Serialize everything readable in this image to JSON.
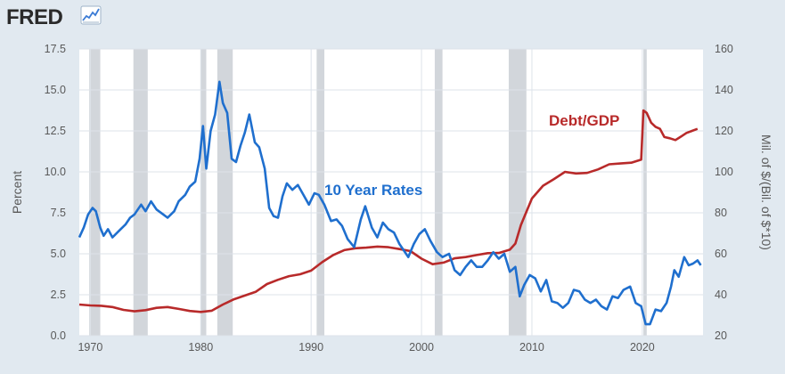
{
  "logo": {
    "text": "FRED",
    "icon": "chart-line-icon"
  },
  "colors": {
    "page_bg": "#e1e9f0",
    "plot_bg": "#ffffff",
    "grid": "#dde3ea",
    "recession": "#d2d6db",
    "rates": "#1f6fce",
    "debt": "#b82a2a",
    "text": "#595959"
  },
  "chart_data": {
    "type": "line",
    "y_left": {
      "label": "Percent",
      "range": [
        0,
        17.5
      ],
      "ticks": [
        "0.0",
        "2.5",
        "5.0",
        "7.5",
        "10.0",
        "12.5",
        "15.0",
        "17.5"
      ]
    },
    "y_right": {
      "label": "Mil. of $/(Bil. of $*10)",
      "range": [
        20,
        160
      ],
      "ticks": [
        "20",
        "40",
        "60",
        "80",
        "100",
        "120",
        "140",
        "160"
      ]
    },
    "x_axis": {
      "range": [
        1969,
        2025.5
      ],
      "ticks": [
        "1970",
        "1980",
        "1990",
        "2000",
        "2010",
        "2020"
      ]
    },
    "grid": true,
    "recessions": [
      [
        1969.9,
        1970.9
      ],
      [
        1973.9,
        1975.2
      ],
      [
        1980.0,
        1980.5
      ],
      [
        1981.5,
        1982.9
      ],
      [
        1990.5,
        1991.2
      ],
      [
        2001.2,
        2001.9
      ],
      [
        2007.9,
        2009.5
      ],
      [
        2020.1,
        2020.4
      ]
    ],
    "annotations": {
      "rates": "10 Year Rates",
      "debt": "Debt/GDP"
    },
    "series": [
      {
        "name": "10 Year Rates",
        "axis": "left",
        "x": [
          1969,
          1969.4,
          1969.8,
          1970.2,
          1970.5,
          1970.9,
          1971.2,
          1971.6,
          1972.0,
          1972.6,
          1973.2,
          1973.6,
          1974.0,
          1974.6,
          1975.0,
          1975.5,
          1976.0,
          1976.6,
          1977.0,
          1977.6,
          1978.0,
          1978.6,
          1979.0,
          1979.5,
          1979.9,
          1980.2,
          1980.5,
          1980.9,
          1981.3,
          1981.7,
          1982.0,
          1982.4,
          1982.8,
          1983.2,
          1983.6,
          1984.0,
          1984.4,
          1984.9,
          1985.3,
          1985.8,
          1986.2,
          1986.6,
          1987.0,
          1987.4,
          1987.8,
          1988.3,
          1988.8,
          1989.3,
          1989.8,
          1990.3,
          1990.7,
          1991.2,
          1991.8,
          1992.3,
          1992.8,
          1993.3,
          1993.9,
          1994.5,
          1994.9,
          1995.5,
          1996.0,
          1996.5,
          1997.0,
          1997.5,
          1998.0,
          1998.8,
          1999.3,
          1999.8,
          2000.3,
          2000.8,
          2001.4,
          2001.9,
          2002.5,
          2003.0,
          2003.5,
          2004.0,
          2004.5,
          2005.0,
          2005.5,
          2006.0,
          2006.5,
          2007.0,
          2007.5,
          2008.0,
          2008.5,
          2008.9,
          2009.3,
          2009.8,
          2010.3,
          2010.8,
          2011.3,
          2011.8,
          2012.3,
          2012.8,
          2013.3,
          2013.8,
          2014.3,
          2014.8,
          2015.3,
          2015.8,
          2016.3,
          2016.8,
          2017.3,
          2017.8,
          2018.3,
          2018.9,
          2019.4,
          2019.9,
          2020.3,
          2020.7,
          2021.2,
          2021.7,
          2022.2,
          2022.6,
          2022.9,
          2023.3,
          2023.8,
          2024.2,
          2024.6,
          2025.0,
          2025.3
        ],
        "values": [
          6.0,
          6.6,
          7.4,
          7.8,
          7.6,
          6.6,
          6.1,
          6.5,
          6.0,
          6.4,
          6.8,
          7.2,
          7.4,
          8.0,
          7.6,
          8.2,
          7.7,
          7.4,
          7.2,
          7.6,
          8.2,
          8.6,
          9.1,
          9.4,
          10.8,
          12.8,
          10.2,
          12.5,
          13.5,
          15.5,
          14.2,
          13.6,
          10.8,
          10.6,
          11.6,
          12.4,
          13.5,
          11.8,
          11.5,
          10.2,
          7.8,
          7.3,
          7.2,
          8.5,
          9.3,
          8.9,
          9.2,
          8.6,
          8.0,
          8.7,
          8.6,
          8.0,
          7.0,
          7.1,
          6.7,
          5.9,
          5.4,
          7.1,
          7.9,
          6.6,
          6.0,
          6.9,
          6.5,
          6.3,
          5.6,
          4.8,
          5.6,
          6.2,
          6.5,
          5.8,
          5.1,
          4.8,
          5.0,
          4.0,
          3.7,
          4.2,
          4.6,
          4.2,
          4.2,
          4.6,
          5.1,
          4.7,
          5.0,
          3.9,
          4.2,
          2.4,
          3.1,
          3.7,
          3.5,
          2.7,
          3.4,
          2.1,
          2.0,
          1.7,
          2.0,
          2.8,
          2.7,
          2.2,
          2.0,
          2.2,
          1.8,
          1.6,
          2.4,
          2.3,
          2.8,
          3.0,
          2.0,
          1.8,
          0.7,
          0.7,
          1.6,
          1.5,
          2.0,
          3.0,
          4.0,
          3.6,
          4.8,
          4.3,
          4.4,
          4.6,
          4.3
        ]
      },
      {
        "name": "Debt/GDP",
        "axis": "right",
        "x": [
          1969,
          1970,
          1971,
          1972,
          1973,
          1974,
          1975,
          1976,
          1977,
          1978,
          1979,
          1980,
          1981,
          1982,
          1983,
          1984,
          1985,
          1986,
          1987,
          1988,
          1989,
          1990,
          1991,
          1992,
          1993,
          1994,
          1995,
          1996,
          1997,
          1998,
          1999,
          2000,
          2001,
          2002,
          2003,
          2004,
          2005,
          2006,
          2007,
          2008,
          2008.5,
          2009.0,
          2009.5,
          2010,
          2011,
          2012,
          2013,
          2014,
          2015,
          2016,
          2017,
          2018,
          2019,
          2019.9,
          2020.1,
          2020.4,
          2020.8,
          2021.2,
          2021.6,
          2022.0,
          2022.5,
          2023.0,
          2023.5,
          2024.0,
          2024.5,
          2025.0
        ],
        "values": [
          35.2,
          34.8,
          34.6,
          34.0,
          32.6,
          31.9,
          32.5,
          33.6,
          34.0,
          33.1,
          32.1,
          31.6,
          32.2,
          35.2,
          37.8,
          39.6,
          41.5,
          45.2,
          47.3,
          49.1,
          50.0,
          51.8,
          55.9,
          59.4,
          61.8,
          62.7,
          63.0,
          63.5,
          63.2,
          62.3,
          61.3,
          57.6,
          54.9,
          55.7,
          57.8,
          58.4,
          59.4,
          60.3,
          60.4,
          62.0,
          65.0,
          74.0,
          80.5,
          87.0,
          93.2,
          96.5,
          100.0,
          99.2,
          99.5,
          101.2,
          103.7,
          104.1,
          104.5,
          106.0,
          130.0,
          128.8,
          124.0,
          122.0,
          121.0,
          117.0,
          116.4,
          115.5,
          117.2,
          119.0,
          120.0,
          121.0
        ]
      }
    ]
  }
}
